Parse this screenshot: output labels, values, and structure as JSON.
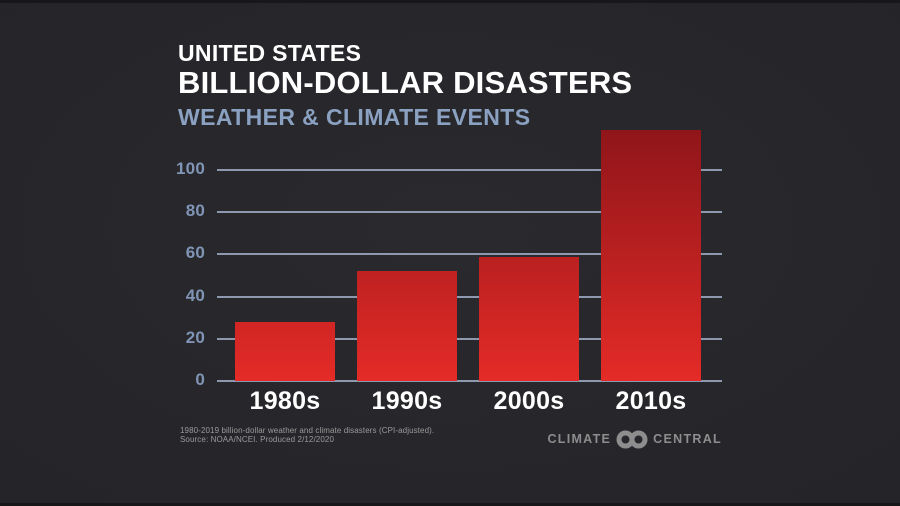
{
  "header": {
    "kicker": "UNITED STATES",
    "title": "BILLION-DOLLAR DISASTERS",
    "subtitle": "WEATHER & CLIMATE EVENTS"
  },
  "chart_data": {
    "type": "bar",
    "title": "United States Billion-Dollar Disasters — Weather & Climate Events",
    "categories": [
      "1980s",
      "1990s",
      "2000s",
      "2010s"
    ],
    "values": [
      28,
      52,
      59,
      119
    ],
    "xlabel": "",
    "ylabel": "",
    "ylim": [
      0,
      120
    ],
    "yticks": [
      0,
      20,
      40,
      60,
      80,
      100
    ],
    "grid": "horizontal",
    "legend": "none",
    "colors": {
      "bar_gradient_bottom": "#e42b27",
      "bar_gradient_top": "#8f151a",
      "gridline": "#9fadc6",
      "tick_label": "#8095b5",
      "category_label": "#ffffff",
      "background": "#242427",
      "subtitle": "#8ba1c1"
    }
  },
  "footer": {
    "note_line1": "1980-2019 billion-dollar weather and climate disasters (CPI-adjusted).",
    "note_line2": "Source: NOAA/NCEI. Produced 2/12/2020",
    "logo": {
      "left": "CLIMATE",
      "right": "CENTRAL",
      "symbol": "interlocked-rings"
    }
  }
}
